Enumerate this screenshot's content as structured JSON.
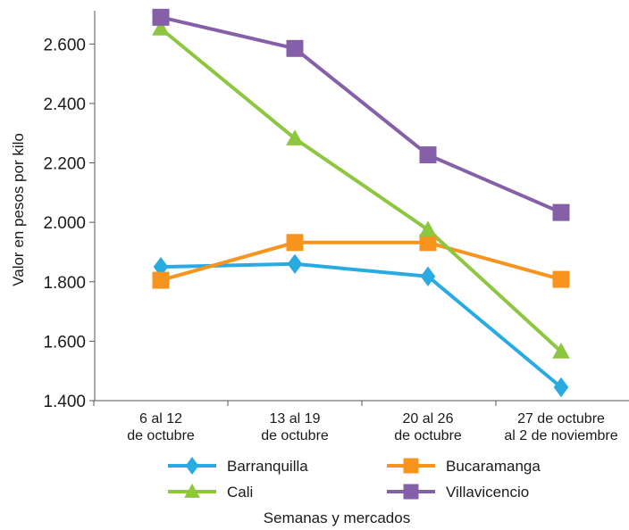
{
  "chart_data": {
    "type": "line",
    "xlabel": "Semanas y mercados",
    "ylabel": "Valor en pesos por kilo",
    "ylim": [
      1400,
      2700
    ],
    "yticks": [
      1400,
      1600,
      1800,
      2000,
      2200,
      2400,
      2600
    ],
    "ytick_labels": [
      "1.400",
      "1.600",
      "1.800",
      "2.000",
      "2.200",
      "2.400",
      "2.600"
    ],
    "categories": [
      [
        "6 al 12",
        "de octubre"
      ],
      [
        "13 al 19",
        "de octubre"
      ],
      [
        "20 al 26",
        "de octubre"
      ],
      [
        "27 de octubre",
        "al 2 de noviembre"
      ]
    ],
    "series": [
      {
        "name": "Barranquilla",
        "color": "#29abe2",
        "marker": "diamond",
        "values": [
          1850,
          1860,
          1818,
          1445
        ]
      },
      {
        "name": "Bucaramanga",
        "color": "#f7941d",
        "marker": "square",
        "values": [
          1805,
          1932,
          1932,
          1808
        ]
      },
      {
        "name": "Cali",
        "color": "#8dc63f",
        "marker": "triangle",
        "values": [
          2652,
          2282,
          1975,
          1565
        ]
      },
      {
        "name": "Villavicencio",
        "color": "#8560a8",
        "marker": "square",
        "values": [
          2690,
          2585,
          2227,
          2033
        ]
      }
    ],
    "legend_position": "bottom",
    "grid": false
  }
}
